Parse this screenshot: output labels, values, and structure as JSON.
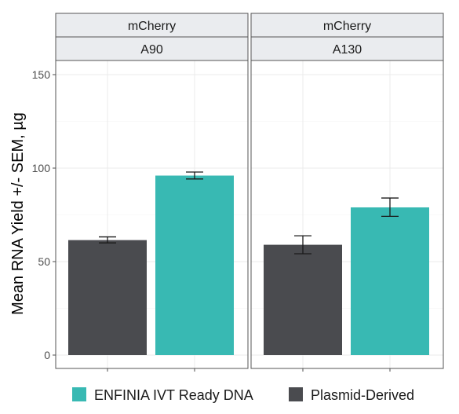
{
  "chart_data": {
    "type": "bar",
    "ylabel": "Mean RNA Yield +/- SEM, µg",
    "xlabel": "",
    "ylim": [
      0,
      155
    ],
    "yticks": [
      0,
      50,
      100,
      150
    ],
    "facet_row_label": "mCherry",
    "grid": true,
    "legend_position": "bottom",
    "series": [
      {
        "name": "ENFINIA IVT Ready DNA",
        "color": "#38b9b3"
      },
      {
        "name": "Plasmid-Derived",
        "color": "#4a4b4f"
      }
    ],
    "legend_order": [
      "ENFINIA IVT Ready DNA",
      "Plasmid-Derived"
    ],
    "bar_order": [
      "Plasmid-Derived",
      "ENFINIA IVT Ready DNA"
    ],
    "panels": [
      {
        "strip_top": "mCherry",
        "strip_bottom": "A90",
        "bars": [
          {
            "series": "Plasmid-Derived",
            "value": 61.5,
            "err_low": 60.0,
            "err_high": 63.2
          },
          {
            "series": "ENFINIA IVT Ready DNA",
            "value": 96.0,
            "err_low": 94.2,
            "err_high": 97.9
          }
        ]
      },
      {
        "strip_top": "mCherry",
        "strip_bottom": "A130",
        "bars": [
          {
            "series": "Plasmid-Derived",
            "value": 59.0,
            "err_low": 54.2,
            "err_high": 63.8
          },
          {
            "series": "ENFINIA IVT Ready DNA",
            "value": 79.0,
            "err_low": 74.2,
            "err_high": 84.0
          }
        ]
      }
    ]
  }
}
